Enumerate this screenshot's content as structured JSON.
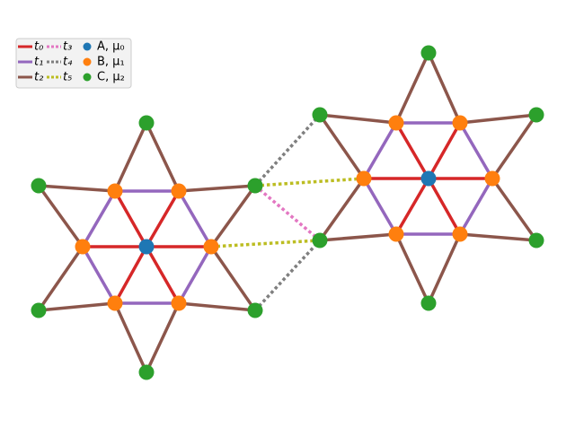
{
  "legend": {
    "entries": [
      {
        "label": "t₀",
        "color": "#d62728",
        "style": "solid"
      },
      {
        "label": "t₁",
        "color": "#9467bd",
        "style": "solid"
      },
      {
        "label": "t₂",
        "color": "#8c564b",
        "style": "solid"
      },
      {
        "label": "t₃",
        "color": "#e377c2",
        "style": "dotted"
      },
      {
        "label": "t₄",
        "color": "#7f7f7f",
        "style": "dotted"
      },
      {
        "label": "t₅",
        "color": "#bcbd22",
        "style": "dotted"
      },
      {
        "label": "A, μ₀",
        "color": "#1f77b4",
        "style": "marker"
      },
      {
        "label": "B, μ₁",
        "color": "#ff7f0e",
        "style": "marker"
      },
      {
        "label": "C, μ₂",
        "color": "#2ca02c",
        "style": "marker"
      }
    ]
  }
}
